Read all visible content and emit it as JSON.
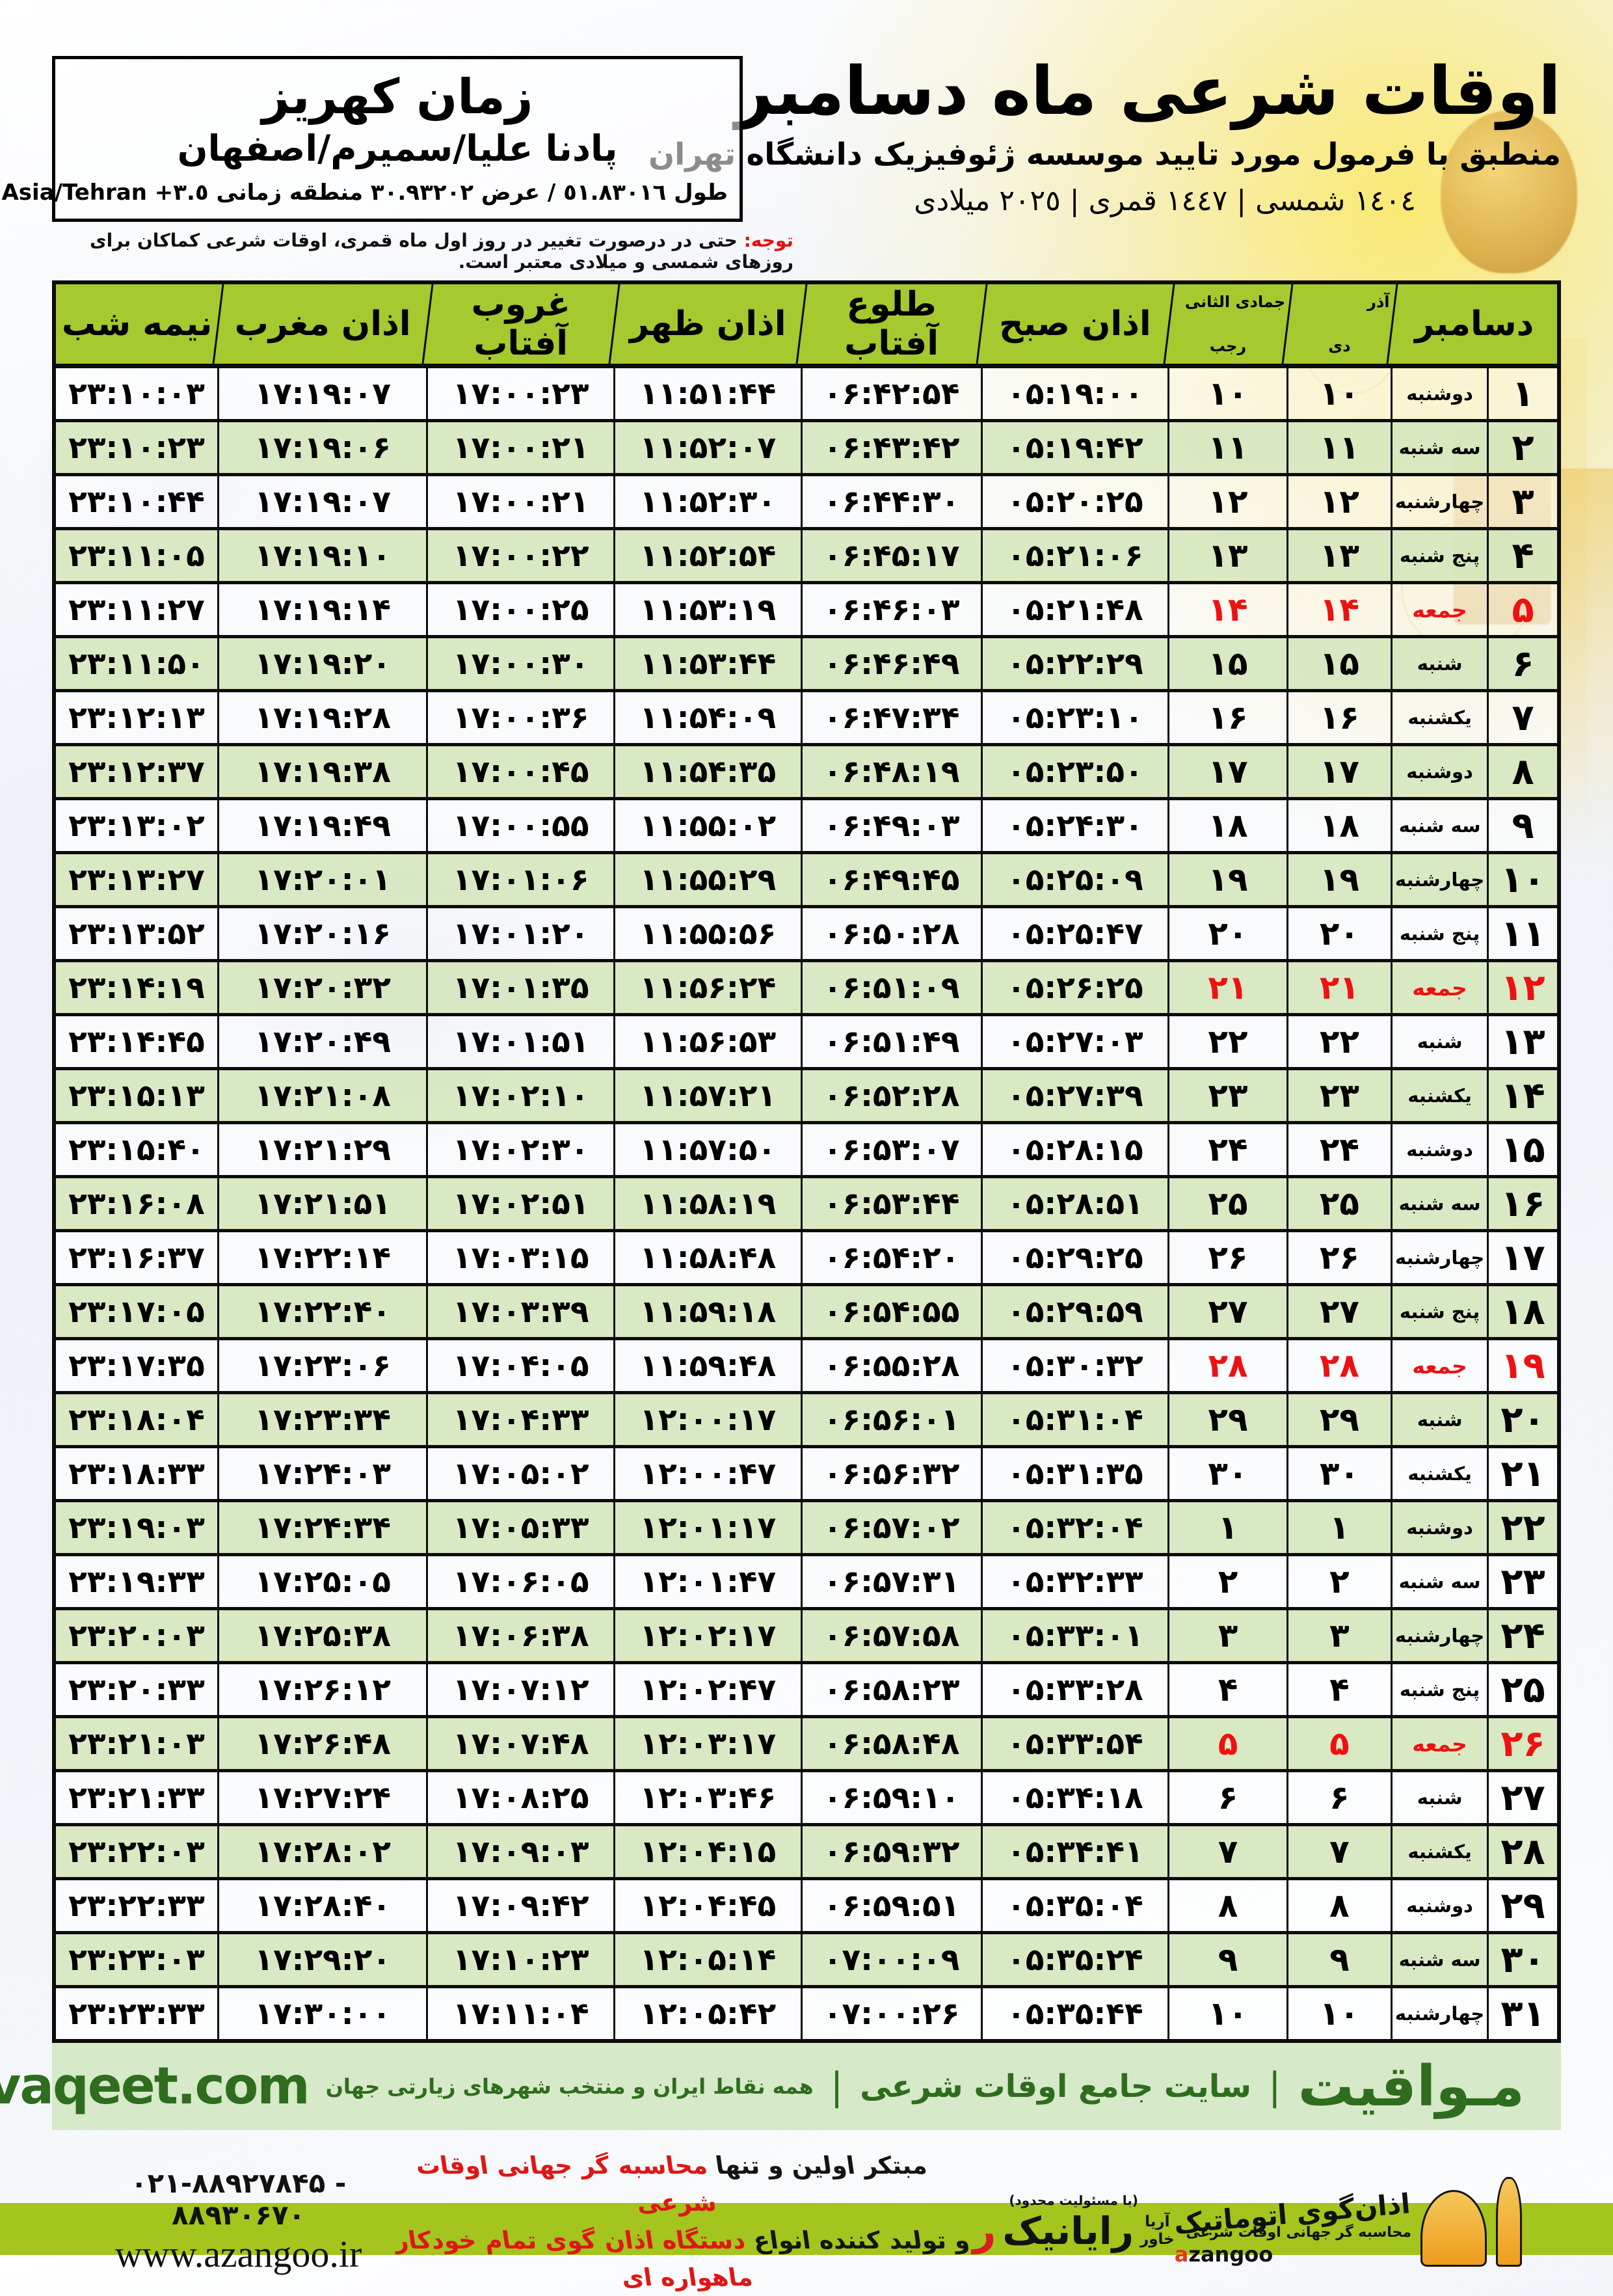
{
  "header": {
    "title": "اوقات شرعی ماه دسامبر",
    "subtitle": "منطبق با فرمول مورد تایید موسسه ژئوفیزیک دانشگاه تهران",
    "calendars_line": "١٤٠٤ شمسی | ١٤٤٧ قمری | ٢٠٢٥ میلادی",
    "location": {
      "line1": "زمان کهریز",
      "line2": "پادنا علیا/سمیرم/اصفهان",
      "line3": "طول ٥١.٨٣٠١٦ / عرض ٣٠.٩٣٢٠٢ منطقه زمانی ٣.٥+ Asia/Tehran"
    },
    "notice_label": "توجه:",
    "notice_text": " حتی در درصورت تغییر در روز اول ماه قمری، اوقات شرعی کماکان برای روزهای شمسی و میلادی معتبر است."
  },
  "table": {
    "headers": {
      "december": "دسامبر",
      "solar_top": "آذر",
      "solar_bottom": "دی",
      "lunar_top": "جمادی الثانی",
      "lunar_bottom": "رجب",
      "fajr": "اذان صبح",
      "sunrise": "طلوع آفتاب",
      "dhuhr": "اذان ظهر",
      "sunset": "غروب آفتاب",
      "maghrib": "اذان مغرب",
      "midnight": "نیمه شب"
    },
    "rows": [
      {
        "day": "۱",
        "weekday": "دوشنبه",
        "solar": "۱۰",
        "lunar": "۱۰",
        "fajr": "۰۵:۱۹:۰۰",
        "sunrise": "۰۶:۴۲:۵۴",
        "dhuhr": "۱۱:۵۱:۴۴",
        "sunset": "۱۷:۰۰:۲۳",
        "maghrib": "۱۷:۱۹:۰۷",
        "midnight": "۲۳:۱۰:۰۳",
        "friday": false
      },
      {
        "day": "۲",
        "weekday": "سه شنبه",
        "solar": "۱۱",
        "lunar": "۱۱",
        "fajr": "۰۵:۱۹:۴۲",
        "sunrise": "۰۶:۴۳:۴۲",
        "dhuhr": "۱۱:۵۲:۰۷",
        "sunset": "۱۷:۰۰:۲۱",
        "maghrib": "۱۷:۱۹:۰۶",
        "midnight": "۲۳:۱۰:۲۳",
        "friday": false
      },
      {
        "day": "۳",
        "weekday": "چهارشنبه",
        "solar": "۱۲",
        "lunar": "۱۲",
        "fajr": "۰۵:۲۰:۲۵",
        "sunrise": "۰۶:۴۴:۳۰",
        "dhuhr": "۱۱:۵۲:۳۰",
        "sunset": "۱۷:۰۰:۲۱",
        "maghrib": "۱۷:۱۹:۰۷",
        "midnight": "۲۳:۱۰:۴۴",
        "friday": false
      },
      {
        "day": "۴",
        "weekday": "پنج شنبه",
        "solar": "۱۳",
        "lunar": "۱۳",
        "fajr": "۰۵:۲۱:۰۶",
        "sunrise": "۰۶:۴۵:۱۷",
        "dhuhr": "۱۱:۵۲:۵۴",
        "sunset": "۱۷:۰۰:۲۲",
        "maghrib": "۱۷:۱۹:۱۰",
        "midnight": "۲۳:۱۱:۰۵",
        "friday": false
      },
      {
        "day": "۵",
        "weekday": "جمعه",
        "solar": "۱۴",
        "lunar": "۱۴",
        "fajr": "۰۵:۲۱:۴۸",
        "sunrise": "۰۶:۴۶:۰۳",
        "dhuhr": "۱۱:۵۳:۱۹",
        "sunset": "۱۷:۰۰:۲۵",
        "maghrib": "۱۷:۱۹:۱۴",
        "midnight": "۲۳:۱۱:۲۷",
        "friday": true
      },
      {
        "day": "۶",
        "weekday": "شنبه",
        "solar": "۱۵",
        "lunar": "۱۵",
        "fajr": "۰۵:۲۲:۲۹",
        "sunrise": "۰۶:۴۶:۴۹",
        "dhuhr": "۱۱:۵۳:۴۴",
        "sunset": "۱۷:۰۰:۳۰",
        "maghrib": "۱۷:۱۹:۲۰",
        "midnight": "۲۳:۱۱:۵۰",
        "friday": false
      },
      {
        "day": "۷",
        "weekday": "یکشنبه",
        "solar": "۱۶",
        "lunar": "۱۶",
        "fajr": "۰۵:۲۳:۱۰",
        "sunrise": "۰۶:۴۷:۳۴",
        "dhuhr": "۱۱:۵۴:۰۹",
        "sunset": "۱۷:۰۰:۳۶",
        "maghrib": "۱۷:۱۹:۲۸",
        "midnight": "۲۳:۱۲:۱۳",
        "friday": false
      },
      {
        "day": "۸",
        "weekday": "دوشنبه",
        "solar": "۱۷",
        "lunar": "۱۷",
        "fajr": "۰۵:۲۳:۵۰",
        "sunrise": "۰۶:۴۸:۱۹",
        "dhuhr": "۱۱:۵۴:۳۵",
        "sunset": "۱۷:۰۰:۴۵",
        "maghrib": "۱۷:۱۹:۳۸",
        "midnight": "۲۳:۱۲:۳۷",
        "friday": false
      },
      {
        "day": "۹",
        "weekday": "سه شنبه",
        "solar": "۱۸",
        "lunar": "۱۸",
        "fajr": "۰۵:۲۴:۳۰",
        "sunrise": "۰۶:۴۹:۰۳",
        "dhuhr": "۱۱:۵۵:۰۲",
        "sunset": "۱۷:۰۰:۵۵",
        "maghrib": "۱۷:۱۹:۴۹",
        "midnight": "۲۳:۱۳:۰۲",
        "friday": false
      },
      {
        "day": "۱۰",
        "weekday": "چهارشنبه",
        "solar": "۱۹",
        "lunar": "۱۹",
        "fajr": "۰۵:۲۵:۰۹",
        "sunrise": "۰۶:۴۹:۴۵",
        "dhuhr": "۱۱:۵۵:۲۹",
        "sunset": "۱۷:۰۱:۰۶",
        "maghrib": "۱۷:۲۰:۰۱",
        "midnight": "۲۳:۱۳:۲۷",
        "friday": false
      },
      {
        "day": "۱۱",
        "weekday": "پنج شنبه",
        "solar": "۲۰",
        "lunar": "۲۰",
        "fajr": "۰۵:۲۵:۴۷",
        "sunrise": "۰۶:۵۰:۲۸",
        "dhuhr": "۱۱:۵۵:۵۶",
        "sunset": "۱۷:۰۱:۲۰",
        "maghrib": "۱۷:۲۰:۱۶",
        "midnight": "۲۳:۱۳:۵۲",
        "friday": false
      },
      {
        "day": "۱۲",
        "weekday": "جمعه",
        "solar": "۲۱",
        "lunar": "۲۱",
        "fajr": "۰۵:۲۶:۲۵",
        "sunrise": "۰۶:۵۱:۰۹",
        "dhuhr": "۱۱:۵۶:۲۴",
        "sunset": "۱۷:۰۱:۳۵",
        "maghrib": "۱۷:۲۰:۳۲",
        "midnight": "۲۳:۱۴:۱۹",
        "friday": true
      },
      {
        "day": "۱۳",
        "weekday": "شنبه",
        "solar": "۲۲",
        "lunar": "۲۲",
        "fajr": "۰۵:۲۷:۰۳",
        "sunrise": "۰۶:۵۱:۴۹",
        "dhuhr": "۱۱:۵۶:۵۳",
        "sunset": "۱۷:۰۱:۵۱",
        "maghrib": "۱۷:۲۰:۴۹",
        "midnight": "۲۳:۱۴:۴۵",
        "friday": false
      },
      {
        "day": "۱۴",
        "weekday": "یکشنبه",
        "solar": "۲۳",
        "lunar": "۲۳",
        "fajr": "۰۵:۲۷:۳۹",
        "sunrise": "۰۶:۵۲:۲۸",
        "dhuhr": "۱۱:۵۷:۲۱",
        "sunset": "۱۷:۰۲:۱۰",
        "maghrib": "۱۷:۲۱:۰۸",
        "midnight": "۲۳:۱۵:۱۳",
        "friday": false
      },
      {
        "day": "۱۵",
        "weekday": "دوشنبه",
        "solar": "۲۴",
        "lunar": "۲۴",
        "fajr": "۰۵:۲۸:۱۵",
        "sunrise": "۰۶:۵۳:۰۷",
        "dhuhr": "۱۱:۵۷:۵۰",
        "sunset": "۱۷:۰۲:۳۰",
        "maghrib": "۱۷:۲۱:۲۹",
        "midnight": "۲۳:۱۵:۴۰",
        "friday": false
      },
      {
        "day": "۱۶",
        "weekday": "سه شنبه",
        "solar": "۲۵",
        "lunar": "۲۵",
        "fajr": "۰۵:۲۸:۵۱",
        "sunrise": "۰۶:۵۳:۴۴",
        "dhuhr": "۱۱:۵۸:۱۹",
        "sunset": "۱۷:۰۲:۵۱",
        "maghrib": "۱۷:۲۱:۵۱",
        "midnight": "۲۳:۱۶:۰۸",
        "friday": false
      },
      {
        "day": "۱۷",
        "weekday": "چهارشنبه",
        "solar": "۲۶",
        "lunar": "۲۶",
        "fajr": "۰۵:۲۹:۲۵",
        "sunrise": "۰۶:۵۴:۲۰",
        "dhuhr": "۱۱:۵۸:۴۸",
        "sunset": "۱۷:۰۳:۱۵",
        "maghrib": "۱۷:۲۲:۱۴",
        "midnight": "۲۳:۱۶:۳۷",
        "friday": false
      },
      {
        "day": "۱۸",
        "weekday": "پنج شنبه",
        "solar": "۲۷",
        "lunar": "۲۷",
        "fajr": "۰۵:۲۹:۵۹",
        "sunrise": "۰۶:۵۴:۵۵",
        "dhuhr": "۱۱:۵۹:۱۸",
        "sunset": "۱۷:۰۳:۳۹",
        "maghrib": "۱۷:۲۲:۴۰",
        "midnight": "۲۳:۱۷:۰۵",
        "friday": false
      },
      {
        "day": "۱۹",
        "weekday": "جمعه",
        "solar": "۲۸",
        "lunar": "۲۸",
        "fajr": "۰۵:۳۰:۳۲",
        "sunrise": "۰۶:۵۵:۲۸",
        "dhuhr": "۱۱:۵۹:۴۸",
        "sunset": "۱۷:۰۴:۰۵",
        "maghrib": "۱۷:۲۳:۰۶",
        "midnight": "۲۳:۱۷:۳۵",
        "friday": true
      },
      {
        "day": "۲۰",
        "weekday": "شنبه",
        "solar": "۲۹",
        "lunar": "۲۹",
        "fajr": "۰۵:۳۱:۰۴",
        "sunrise": "۰۶:۵۶:۰۱",
        "dhuhr": "۱۲:۰۰:۱۷",
        "sunset": "۱۷:۰۴:۳۳",
        "maghrib": "۱۷:۲۳:۳۴",
        "midnight": "۲۳:۱۸:۰۴",
        "friday": false
      },
      {
        "day": "۲۱",
        "weekday": "یکشنبه",
        "solar": "۳۰",
        "lunar": "۳۰",
        "fajr": "۰۵:۳۱:۳۵",
        "sunrise": "۰۶:۵۶:۳۲",
        "dhuhr": "۱۲:۰۰:۴۷",
        "sunset": "۱۷:۰۵:۰۲",
        "maghrib": "۱۷:۲۴:۰۳",
        "midnight": "۲۳:۱۸:۳۳",
        "friday": false
      },
      {
        "day": "۲۲",
        "weekday": "دوشنبه",
        "solar": "۱",
        "lunar": "۱",
        "fajr": "۰۵:۳۲:۰۴",
        "sunrise": "۰۶:۵۷:۰۲",
        "dhuhr": "۱۲:۰۱:۱۷",
        "sunset": "۱۷:۰۵:۳۳",
        "maghrib": "۱۷:۲۴:۳۴",
        "midnight": "۲۳:۱۹:۰۳",
        "friday": false
      },
      {
        "day": "۲۳",
        "weekday": "سه شنبه",
        "solar": "۲",
        "lunar": "۲",
        "fajr": "۰۵:۳۲:۳۳",
        "sunrise": "۰۶:۵۷:۳۱",
        "dhuhr": "۱۲:۰۱:۴۷",
        "sunset": "۱۷:۰۶:۰۵",
        "maghrib": "۱۷:۲۵:۰۵",
        "midnight": "۲۳:۱۹:۳۳",
        "friday": false
      },
      {
        "day": "۲۴",
        "weekday": "چهارشنبه",
        "solar": "۳",
        "lunar": "۳",
        "fajr": "۰۵:۳۳:۰۱",
        "sunrise": "۰۶:۵۷:۵۸",
        "dhuhr": "۱۲:۰۲:۱۷",
        "sunset": "۱۷:۰۶:۳۸",
        "maghrib": "۱۷:۲۵:۳۸",
        "midnight": "۲۳:۲۰:۰۳",
        "friday": false
      },
      {
        "day": "۲۵",
        "weekday": "پنج شنبه",
        "solar": "۴",
        "lunar": "۴",
        "fajr": "۰۵:۳۳:۲۸",
        "sunrise": "۰۶:۵۸:۲۳",
        "dhuhr": "۱۲:۰۲:۴۷",
        "sunset": "۱۷:۰۷:۱۲",
        "maghrib": "۱۷:۲۶:۱۲",
        "midnight": "۲۳:۲۰:۳۳",
        "friday": false
      },
      {
        "day": "۲۶",
        "weekday": "جمعه",
        "solar": "۵",
        "lunar": "۵",
        "fajr": "۰۵:۳۳:۵۴",
        "sunrise": "۰۶:۵۸:۴۸",
        "dhuhr": "۱۲:۰۳:۱۷",
        "sunset": "۱۷:۰۷:۴۸",
        "maghrib": "۱۷:۲۶:۴۸",
        "midnight": "۲۳:۲۱:۰۳",
        "friday": true
      },
      {
        "day": "۲۷",
        "weekday": "شنبه",
        "solar": "۶",
        "lunar": "۶",
        "fajr": "۰۵:۳۴:۱۸",
        "sunrise": "۰۶:۵۹:۱۰",
        "dhuhr": "۱۲:۰۳:۴۶",
        "sunset": "۱۷:۰۸:۲۵",
        "maghrib": "۱۷:۲۷:۲۴",
        "midnight": "۲۳:۲۱:۳۳",
        "friday": false
      },
      {
        "day": "۲۸",
        "weekday": "یکشنبه",
        "solar": "۷",
        "lunar": "۷",
        "fajr": "۰۵:۳۴:۴۱",
        "sunrise": "۰۶:۵۹:۳۲",
        "dhuhr": "۱۲:۰۴:۱۵",
        "sunset": "۱۷:۰۹:۰۳",
        "maghrib": "۱۷:۲۸:۰۲",
        "midnight": "۲۳:۲۲:۰۳",
        "friday": false
      },
      {
        "day": "۲۹",
        "weekday": "دوشنبه",
        "solar": "۸",
        "lunar": "۸",
        "fajr": "۰۵:۳۵:۰۴",
        "sunrise": "۰۶:۵۹:۵۱",
        "dhuhr": "۱۲:۰۴:۴۵",
        "sunset": "۱۷:۰۹:۴۲",
        "maghrib": "۱۷:۲۸:۴۰",
        "midnight": "۲۳:۲۲:۳۳",
        "friday": false
      },
      {
        "day": "۳۰",
        "weekday": "سه شنبه",
        "solar": "۹",
        "lunar": "۹",
        "fajr": "۰۵:۳۵:۲۴",
        "sunrise": "۰۷:۰۰:۰۹",
        "dhuhr": "۱۲:۰۵:۱۴",
        "sunset": "۱۷:۱۰:۲۳",
        "maghrib": "۱۷:۲۹:۲۰",
        "midnight": "۲۳:۲۳:۰۳",
        "friday": false
      },
      {
        "day": "۳۱",
        "weekday": "چهارشنبه",
        "solar": "۱۰",
        "lunar": "۱۰",
        "fajr": "۰۵:۳۵:۴۴",
        "sunrise": "۰۷:۰۰:۲۶",
        "dhuhr": "۱۲:۰۵:۴۲",
        "sunset": "۱۷:۱۱:۰۴",
        "maghrib": "۱۷:۳۰:۰۰",
        "midnight": "۲۳:۲۳:۳۳",
        "friday": false
      }
    ]
  },
  "footer": {
    "brand": "مـواقیت",
    "separator": "|",
    "tagline1": "سایت جامع اوقات شرعی",
    "tagline2": "همه نقاط ایران و منتخب شهرهای زیارتی جهان",
    "domain": "mavaqeet.com"
  },
  "bottom": {
    "phone": "۰۲۱-۸۸۹۲۷۸۴۵ - ۸۸۹۳۰۶۷۰",
    "website": "www.azangoo.ir",
    "slogan_line1_black": "مبتکر اولین و تنها ",
    "slogan_line1_red": "محاسبه گر جهانی اوقات شرعی",
    "slogan_line2_black": "و تولید کننده انواع ",
    "slogan_line2_red": "دستگاه اذان گوی تمام خودکار ماهواره ای",
    "rayanik": {
      "small": "(با مسئولیت محدود)",
      "name": "رایانیک",
      "stack_top": "آریا",
      "stack_bottom": "خاور",
      "red_letter": "ر"
    },
    "azangoo": {
      "title": "اذان‌گوی اتوماتیک",
      "subtitle": "محاسبه گر جهانی اوقات شرعی",
      "brand_a": "a",
      "brand_rest": "zangoo"
    }
  },
  "colors": {
    "header_green": "#a5c92e",
    "row_green": "#d7e8c1",
    "friday_red": "#ee1111",
    "footer_band_green": "#d6e9c8",
    "footer_text_green": "#2f6d1e",
    "bottom_bar_lime": "#a4c41e"
  }
}
